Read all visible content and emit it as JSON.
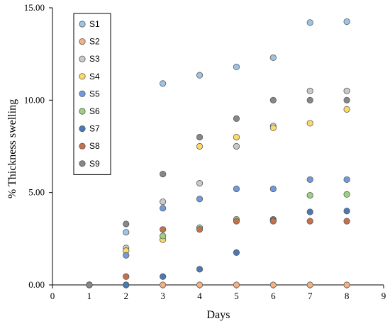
{
  "chart_data": {
    "type": "scatter",
    "title": "",
    "xlabel": "Days",
    "ylabel": "% Thickness swelling",
    "xlim": [
      0,
      9
    ],
    "ylim": [
      0,
      15
    ],
    "x_ticks": [
      0,
      1,
      2,
      3,
      4,
      5,
      6,
      7,
      8,
      9
    ],
    "y_ticks": [
      0,
      5,
      10,
      15
    ],
    "y_tick_labels": [
      "0.00",
      "5.00",
      "10.00",
      "15.00"
    ],
    "x_tick_labels": [
      "0",
      "1",
      "2",
      "3",
      "4",
      "5",
      "6",
      "7",
      "8",
      "9"
    ],
    "grid": false,
    "legend_position": "top-left",
    "x": [
      1,
      2,
      3,
      4,
      5,
      6,
      7,
      8
    ],
    "series": [
      {
        "name": "S1",
        "color": "#9dc3e6",
        "values": [
          0,
          2.85,
          10.9,
          11.35,
          11.8,
          12.3,
          14.2,
          14.25
        ]
      },
      {
        "name": "S2",
        "color": "#f4b183",
        "values": [
          0,
          0,
          0,
          0,
          0,
          0,
          0,
          0
        ]
      },
      {
        "name": "S3",
        "color": "#c9c9c9",
        "values": [
          0,
          2.0,
          4.5,
          5.5,
          7.5,
          8.6,
          10.5,
          10.5
        ]
      },
      {
        "name": "S4",
        "color": "#ffd966",
        "values": [
          0,
          1.85,
          2.45,
          7.5,
          8.0,
          8.5,
          8.75,
          9.5
        ]
      },
      {
        "name": "S5",
        "color": "#6f9bdc",
        "values": [
          0,
          1.6,
          4.15,
          4.65,
          5.2,
          5.2,
          5.7,
          5.7
        ]
      },
      {
        "name": "S6",
        "color": "#9bd17f",
        "values": [
          0,
          0,
          2.65,
          3.1,
          3.55,
          3.55,
          4.85,
          4.9
        ]
      },
      {
        "name": "S7",
        "color": "#4a78b8",
        "values": [
          0,
          0,
          0.45,
          0.85,
          1.75,
          3.5,
          3.95,
          4.0
        ]
      },
      {
        "name": "S8",
        "color": "#c6714a",
        "values": [
          0,
          0.45,
          3.0,
          3.0,
          3.45,
          3.45,
          3.45,
          3.45
        ]
      },
      {
        "name": "S9",
        "color": "#878787",
        "values": [
          0,
          3.3,
          6.0,
          8.0,
          9.0,
          10.0,
          10.0,
          10.0
        ]
      }
    ]
  }
}
